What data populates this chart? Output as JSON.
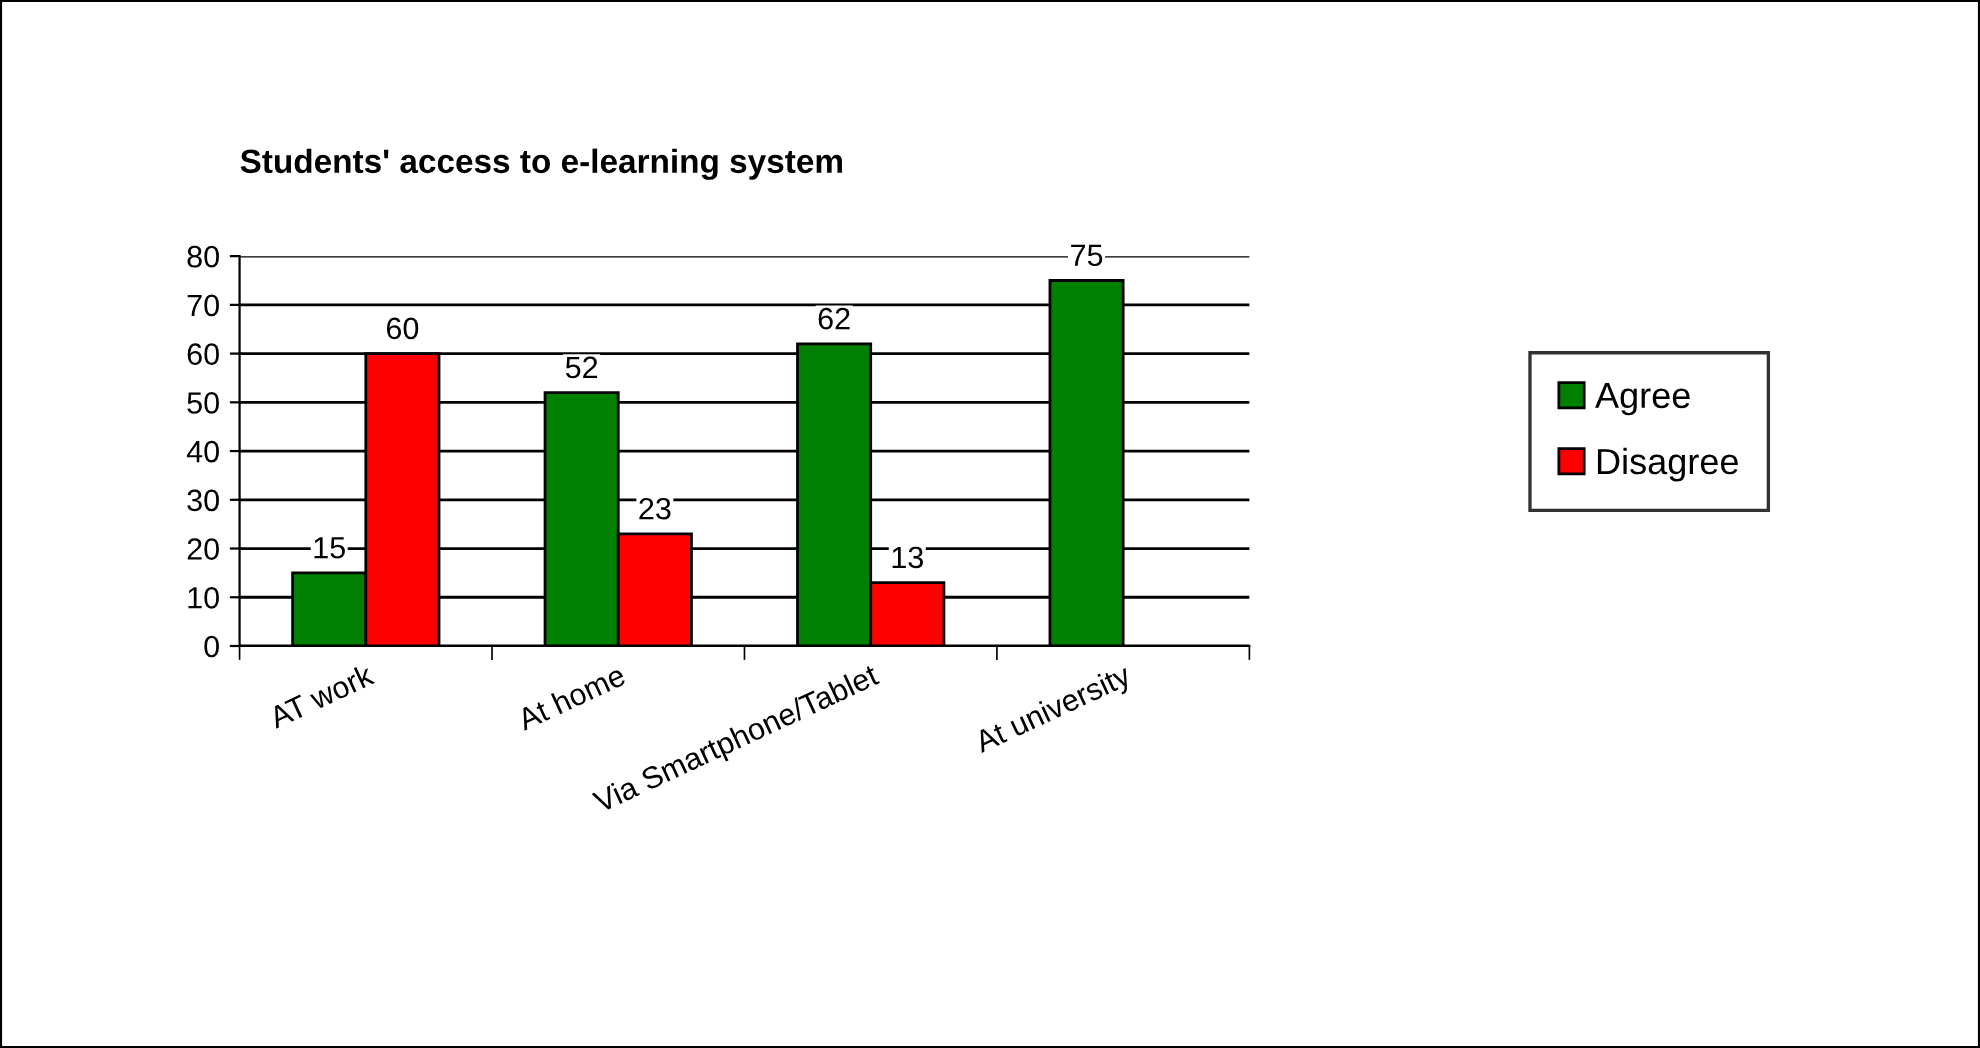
{
  "chart_data": {
    "type": "bar",
    "title": "Students' access to e-learning system",
    "categories": [
      "AT work",
      "At home",
      "Via Smartphone/Tablet",
      "At university"
    ],
    "series": [
      {
        "name": "Agree",
        "color": "#008000",
        "values": [
          15,
          52,
          62,
          75
        ]
      },
      {
        "name": "Disagree",
        "color": "#ff0000",
        "values": [
          60,
          23,
          13,
          null
        ]
      }
    ],
    "ylim": [
      0,
      80
    ],
    "yticks": [
      0,
      10,
      20,
      30,
      40,
      50,
      60,
      70,
      80
    ],
    "grid": "y",
    "legend": "right",
    "data_labels": true
  }
}
